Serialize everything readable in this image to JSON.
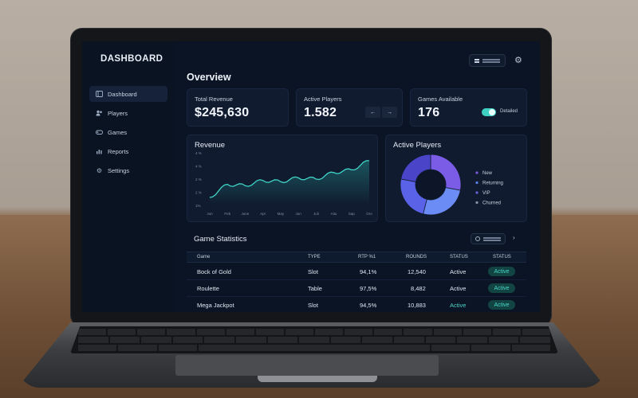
{
  "app": {
    "title": "DASHBOARD"
  },
  "sidebar": {
    "items": [
      {
        "label": "Dashboard",
        "icon": "dashboard-icon",
        "active": true
      },
      {
        "label": "Players",
        "icon": "players-icon",
        "active": false
      },
      {
        "label": "Games",
        "icon": "gamepad-icon",
        "active": false
      },
      {
        "label": "Reports",
        "icon": "bar-chart-icon",
        "active": false
      },
      {
        "label": "Settings",
        "icon": "gear-icon",
        "active": false
      }
    ]
  },
  "main": {
    "title": "Overview",
    "cards": {
      "revenue": {
        "label": "Total Revenue",
        "value": "$245,630"
      },
      "players": {
        "label": "Active Players",
        "value": "1.582",
        "prev": "←",
        "next": "→"
      },
      "games": {
        "label": "Games Available",
        "value": "176",
        "toggle_label": "Detailed",
        "toggle_on": true
      }
    },
    "revenue_chart": {
      "title": "Revenue",
      "chart_data": {
        "type": "line",
        "title": "Revenue",
        "y_ticks": [
          "4 %",
          "4 %",
          "2 %",
          "2 %",
          "1%"
        ],
        "categories": [
          "Jun",
          "Feb",
          "June",
          "Apr",
          "May",
          "Jun",
          "Juli",
          "Aitu",
          "Sap",
          "Oro"
        ],
        "values": [
          0.6,
          1.6,
          1.5,
          1.9,
          1.8,
          2.1,
          2.0,
          2.5,
          2.7,
          3.4
        ],
        "line_color": "#3fd3c5",
        "grid": false
      }
    },
    "players_chart": {
      "title": "Active Players",
      "chart_data": {
        "type": "pie",
        "donut": true,
        "legend": [
          "New",
          "Returning",
          "VIP",
          "Churned"
        ],
        "legend_colors": [
          "#7a5ae0",
          "#5b7ef0",
          "#6a5fd6",
          "#8a94a8"
        ],
        "slices": [
          {
            "value": 28,
            "color": "#7b5ce6"
          },
          {
            "value": 26,
            "color": "#6b8cf4"
          },
          {
            "value": 24,
            "color": "#5a63e8"
          },
          {
            "value": 22,
            "color": "#4a44c9"
          }
        ]
      }
    },
    "game_stats": {
      "title": "Game Statistics",
      "columns": [
        "Game",
        "TYPE",
        "RTP %1",
        "ROUNDS",
        "STATUS",
        "STATUS"
      ],
      "rows": [
        {
          "game": "Bock of Gold",
          "type": "Slot",
          "rtp": "94,1%",
          "rounds": "12,540",
          "status": "Active",
          "badge": "Active"
        },
        {
          "game": "Roulette",
          "type": "Table",
          "rtp": "97,5%",
          "rounds": "8,482",
          "status": "Active",
          "badge": "Active"
        },
        {
          "game": "Mega Jackpot",
          "type": "Slot",
          "rtp": "94,5%",
          "rounds": "10,883",
          "status": "Active",
          "badge": "Active"
        }
      ]
    }
  },
  "icons": {
    "top_menu": "menu-lines-icon",
    "top_settings": "gear-icon",
    "table_filter": "filter-icon",
    "table_next": "chevron-right-icon"
  },
  "glyphs": {
    "chevron": "›",
    "gear": "⚙"
  }
}
